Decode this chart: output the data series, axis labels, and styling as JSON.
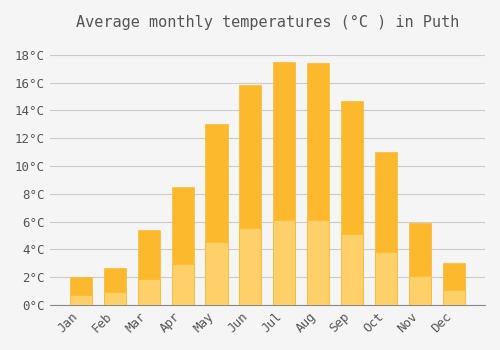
{
  "title": "Average monthly temperatures (°C ) in Puth",
  "months": [
    "Jan",
    "Feb",
    "Mar",
    "Apr",
    "May",
    "Jun",
    "Jul",
    "Aug",
    "Sep",
    "Oct",
    "Nov",
    "Dec"
  ],
  "values": [
    2.0,
    2.7,
    5.4,
    8.5,
    13.0,
    15.8,
    17.5,
    17.4,
    14.7,
    11.0,
    5.9,
    3.0
  ],
  "bar_color_top": "#FDB92E",
  "bar_color_bottom": "#FDD06A",
  "bar_edge_color": "#FDB92E",
  "background_color": "#F5F5F5",
  "grid_color": "#CCCCCC",
  "text_color": "#555555",
  "ylim": [
    0,
    19
  ],
  "yticks": [
    0,
    2,
    4,
    6,
    8,
    10,
    12,
    14,
    16,
    18
  ],
  "title_fontsize": 11,
  "tick_fontsize": 9,
  "font_family": "monospace"
}
